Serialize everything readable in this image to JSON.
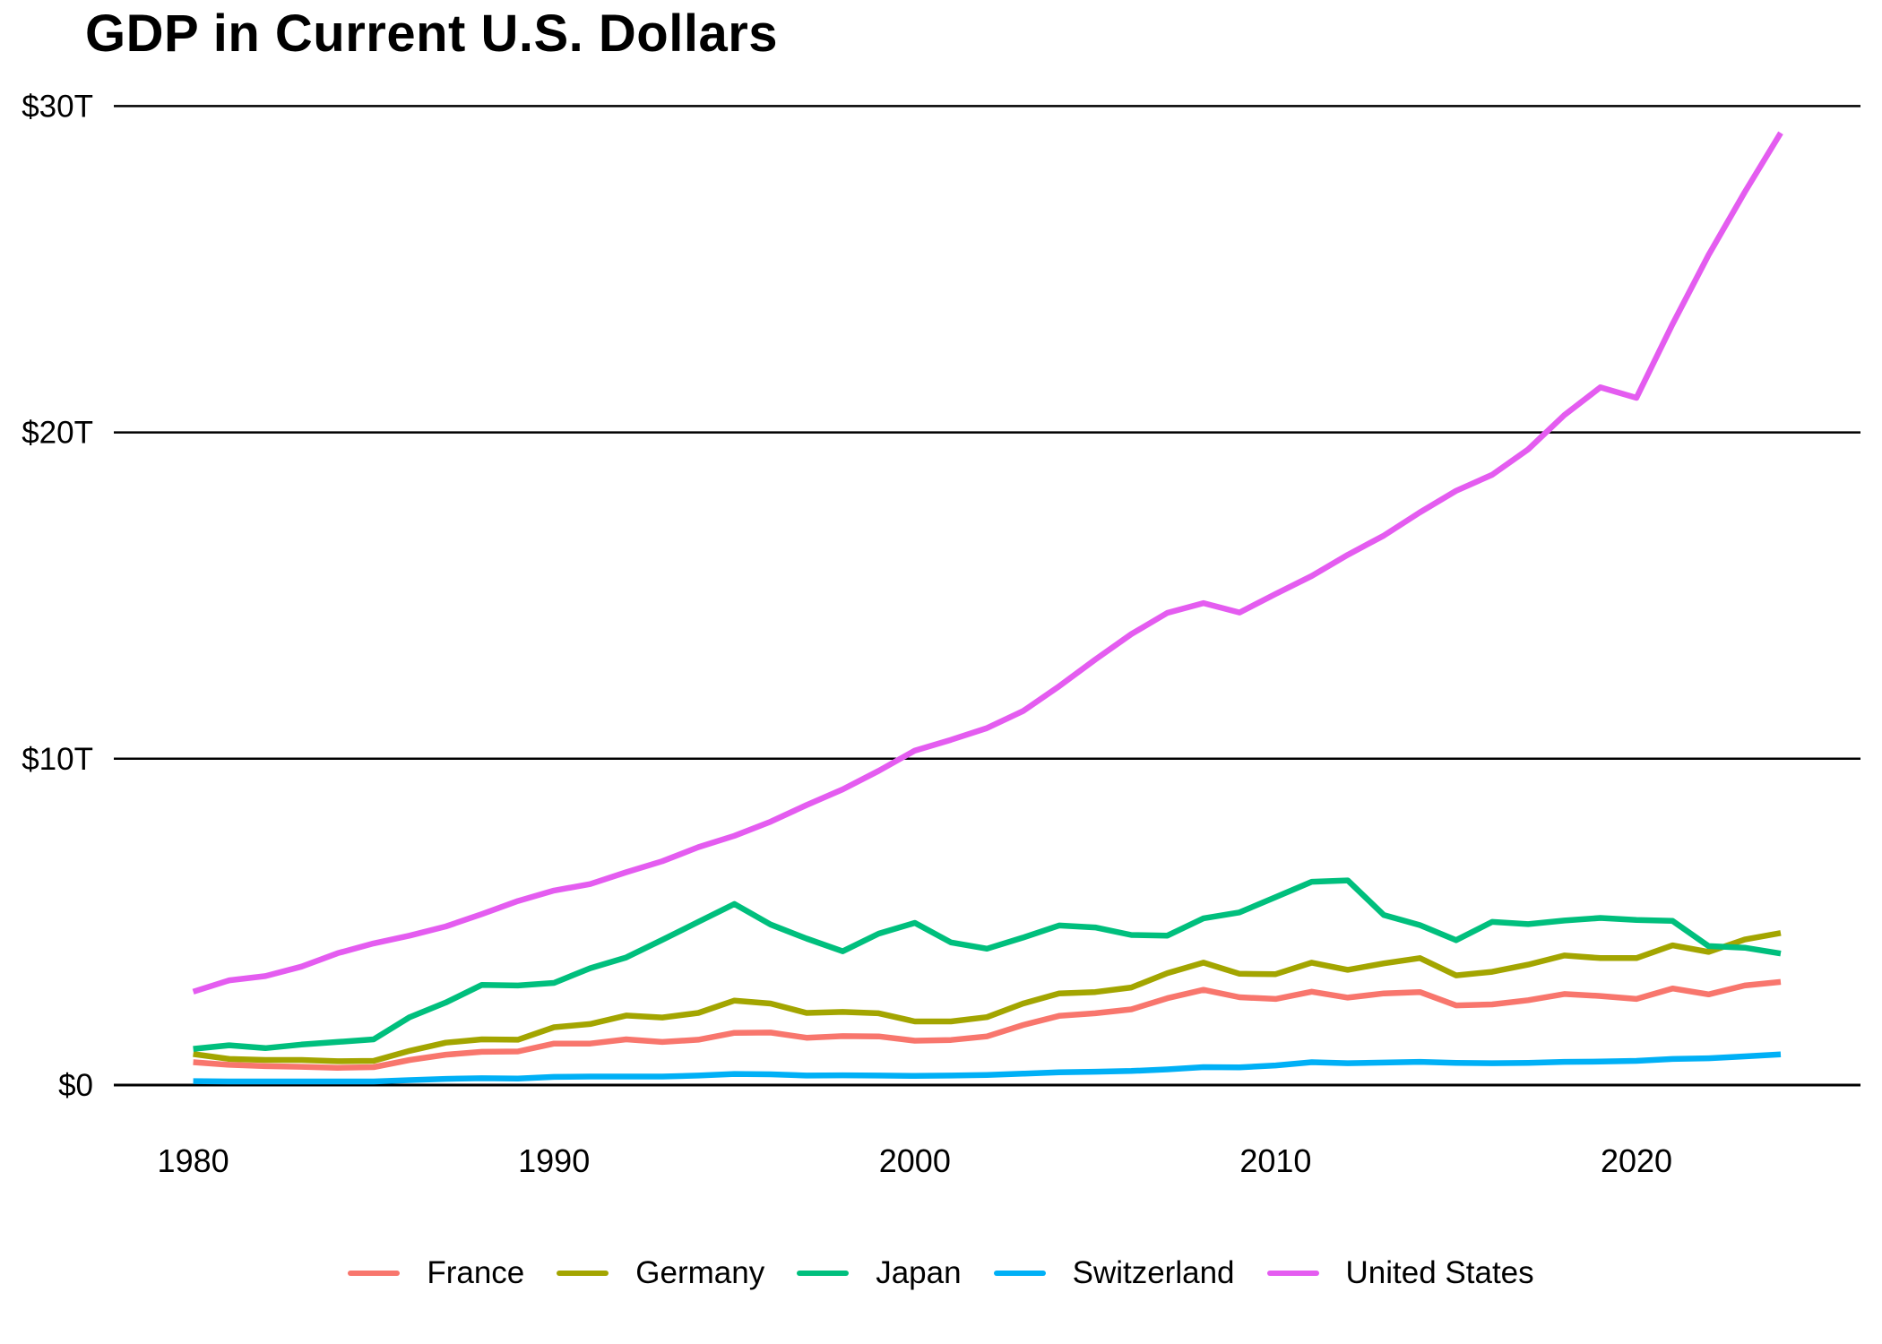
{
  "chart_data": {
    "type": "line",
    "title": "GDP in Current U.S. Dollars",
    "unit": "trillions of current U.S. dollars",
    "x_range": [
      1980,
      2024
    ],
    "y_range_trillions": [
      0,
      30
    ],
    "grid": "horizontal-only",
    "legend_position": "bottom-center",
    "y_ticks": [
      {
        "value": 0,
        "label": "$0"
      },
      {
        "value": 10,
        "label": "$10T"
      },
      {
        "value": 20,
        "label": "$20T"
      },
      {
        "value": 30,
        "label": "$30T"
      }
    ],
    "x_ticks": [
      {
        "value": 1980,
        "label": "1980"
      },
      {
        "value": 1990,
        "label": "1990"
      },
      {
        "value": 2000,
        "label": "2000"
      },
      {
        "value": 2010,
        "label": "2010"
      },
      {
        "value": 2020,
        "label": "2020"
      }
    ],
    "years": [
      1980,
      1981,
      1982,
      1983,
      1984,
      1985,
      1986,
      1987,
      1988,
      1989,
      1990,
      1991,
      1992,
      1993,
      1994,
      1995,
      1996,
      1997,
      1998,
      1999,
      2000,
      2001,
      2002,
      2003,
      2004,
      2005,
      2006,
      2007,
      2008,
      2009,
      2010,
      2011,
      2012,
      2013,
      2014,
      2015,
      2016,
      2017,
      2018,
      2019,
      2020,
      2021,
      2022,
      2023,
      2024
    ],
    "series": [
      {
        "name": "France",
        "color": "#F8766D",
        "values": [
          0.7,
          0.62,
          0.58,
          0.56,
          0.53,
          0.55,
          0.77,
          0.93,
          1.02,
          1.03,
          1.27,
          1.27,
          1.4,
          1.32,
          1.39,
          1.6,
          1.61,
          1.45,
          1.5,
          1.49,
          1.36,
          1.38,
          1.49,
          1.84,
          2.12,
          2.2,
          2.32,
          2.66,
          2.92,
          2.69,
          2.64,
          2.86,
          2.68,
          2.81,
          2.85,
          2.44,
          2.47,
          2.6,
          2.79,
          2.73,
          2.64,
          2.96,
          2.78,
          3.05,
          3.16
        ]
      },
      {
        "name": "Germany",
        "color": "#A3A500",
        "values": [
          0.95,
          0.8,
          0.77,
          0.77,
          0.73,
          0.74,
          1.05,
          1.3,
          1.4,
          1.39,
          1.77,
          1.87,
          2.13,
          2.07,
          2.21,
          2.59,
          2.5,
          2.21,
          2.24,
          2.2,
          1.95,
          1.95,
          2.08,
          2.5,
          2.81,
          2.85,
          2.99,
          3.43,
          3.75,
          3.41,
          3.4,
          3.75,
          3.53,
          3.73,
          3.89,
          3.36,
          3.47,
          3.69,
          3.97,
          3.89,
          3.89,
          4.28,
          4.08,
          4.46,
          4.66
        ]
      },
      {
        "name": "Japan",
        "color": "#00BF7D",
        "values": [
          1.11,
          1.22,
          1.13,
          1.24,
          1.32,
          1.4,
          2.08,
          2.53,
          3.07,
          3.05,
          3.13,
          3.58,
          3.91,
          4.45,
          5.0,
          5.55,
          4.92,
          4.49,
          4.1,
          4.64,
          4.97,
          4.37,
          4.18,
          4.52,
          4.89,
          4.83,
          4.6,
          4.58,
          5.11,
          5.29,
          5.76,
          6.23,
          6.27,
          5.21,
          4.9,
          4.44,
          5.0,
          4.93,
          5.04,
          5.12,
          5.06,
          5.03,
          4.26,
          4.21,
          4.03
        ]
      },
      {
        "name": "Switzerland",
        "color": "#00B0F6",
        "values": [
          0.12,
          0.11,
          0.11,
          0.11,
          0.11,
          0.11,
          0.15,
          0.19,
          0.21,
          0.2,
          0.25,
          0.26,
          0.26,
          0.26,
          0.29,
          0.34,
          0.33,
          0.29,
          0.3,
          0.29,
          0.28,
          0.29,
          0.31,
          0.35,
          0.39,
          0.41,
          0.43,
          0.48,
          0.55,
          0.54,
          0.6,
          0.7,
          0.67,
          0.69,
          0.71,
          0.68,
          0.67,
          0.68,
          0.71,
          0.72,
          0.74,
          0.8,
          0.82,
          0.88,
          0.94
        ]
      },
      {
        "name": "United States",
        "color": "#E45CF0",
        "values": [
          2.86,
          3.21,
          3.34,
          3.63,
          4.04,
          4.34,
          4.58,
          4.86,
          5.24,
          5.64,
          5.96,
          6.16,
          6.52,
          6.86,
          7.29,
          7.64,
          8.07,
          8.58,
          9.06,
          9.63,
          10.25,
          10.58,
          10.94,
          11.46,
          12.22,
          13.04,
          13.82,
          14.47,
          14.77,
          14.48,
          15.05,
          15.6,
          16.25,
          16.84,
          17.55,
          18.21,
          18.7,
          19.48,
          20.53,
          21.38,
          21.06,
          23.32,
          25.44,
          27.36,
          29.18
        ]
      }
    ]
  }
}
